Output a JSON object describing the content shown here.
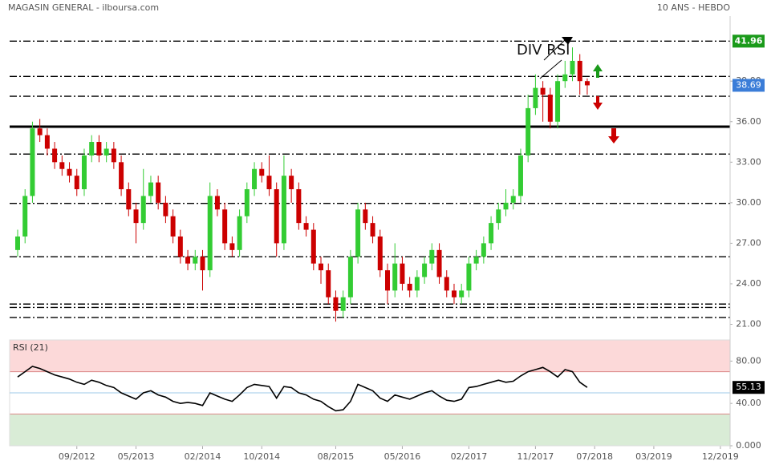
{
  "chart_data": [
    {
      "type": "candlestick",
      "title": "MAGASIN GENERAL - ilboursa.com",
      "subtitle": "10 ANS - HEBDO",
      "annotation": "DIV RSI",
      "categories": [
        null,
        null,
        null,
        null,
        null,
        null,
        null,
        null,
        "09/2012",
        null,
        null,
        null,
        null,
        null,
        null,
        null,
        "05/2013",
        null,
        null,
        null,
        null,
        null,
        null,
        null,
        null,
        "02/2014",
        null,
        null,
        null,
        null,
        null,
        null,
        null,
        "10/2014",
        null,
        null,
        null,
        null,
        null,
        null,
        null,
        null,
        null,
        "08/2015",
        null,
        null,
        null,
        null,
        null,
        null,
        null,
        null,
        "05/2016",
        null,
        null,
        null,
        null,
        null,
        null,
        null,
        null,
        "02/2017",
        null,
        null,
        null,
        null,
        null,
        null,
        null,
        null,
        "11/2017",
        null,
        null,
        null,
        null,
        null,
        null,
        null,
        "07/2018",
        null,
        null,
        null,
        null,
        null,
        null,
        null,
        "03/2019",
        null,
        null,
        null,
        null,
        null,
        null,
        null,
        null,
        "12/2019"
      ],
      "open": [
        26.5,
        27.5,
        30.5,
        35.5,
        35.0,
        34.0,
        33.0,
        32.5,
        32.0,
        31.0,
        33.5,
        34.5,
        33.5,
        34.0,
        33.0,
        31.0,
        29.5,
        28.5,
        30.5,
        31.5,
        30.0,
        29.0,
        27.5,
        26.0,
        25.5,
        26.0,
        25.0,
        30.5,
        29.5,
        27.0,
        26.5,
        29.0,
        31.0,
        32.5,
        32.0,
        31.0,
        27.0,
        32.0,
        31.0,
        28.5,
        28.0,
        25.5,
        25.0,
        23.0,
        22.0,
        23.0,
        26.0,
        29.5,
        28.5,
        27.5,
        25.0,
        23.5,
        25.5,
        24.0,
        23.5,
        24.5,
        25.5,
        26.5,
        24.5,
        23.5,
        23.0,
        23.5,
        25.5,
        26.0,
        27.0,
        28.5,
        29.5,
        30.0,
        30.5,
        33.5,
        37.0,
        38.5,
        38.0,
        36.0,
        39.0,
        39.5,
        40.5,
        39.0,
        null,
        null,
        null,
        null,
        null,
        null,
        null,
        null,
        null,
        null,
        null,
        null,
        null,
        null,
        null,
        null,
        null,
        null
      ],
      "high": [
        28.0,
        31.0,
        36.0,
        36.2,
        35.5,
        34.5,
        33.5,
        33.0,
        32.5,
        34.0,
        35.0,
        35.0,
        34.5,
        34.5,
        33.5,
        31.5,
        30.0,
        32.5,
        32.0,
        32.0,
        30.5,
        29.5,
        28.0,
        26.5,
        26.5,
        26.5,
        31.5,
        31.0,
        30.0,
        27.5,
        29.5,
        31.5,
        33.0,
        33.0,
        33.5,
        31.5,
        33.5,
        32.5,
        31.5,
        29.0,
        28.5,
        26.0,
        25.5,
        23.5,
        23.5,
        26.5,
        30.0,
        30.0,
        29.0,
        28.0,
        25.5,
        27.0,
        26.0,
        24.5,
        25.0,
        26.0,
        27.0,
        27.0,
        25.0,
        24.0,
        24.0,
        26.0,
        26.5,
        27.5,
        29.0,
        30.0,
        31.0,
        31.0,
        34.0,
        38.0,
        39.5,
        39.0,
        38.5,
        39.5,
        40.5,
        41.5,
        41.0,
        39.2,
        null,
        null,
        null,
        null,
        null,
        null,
        null,
        null,
        null,
        null,
        null,
        null,
        null,
        null,
        null,
        null,
        null,
        null
      ],
      "low": [
        26.0,
        27.0,
        30.0,
        34.5,
        33.5,
        32.5,
        32.0,
        31.5,
        30.5,
        30.5,
        33.0,
        33.0,
        33.0,
        32.5,
        30.5,
        29.0,
        27.0,
        28.0,
        30.0,
        29.5,
        28.5,
        27.0,
        25.5,
        25.0,
        25.0,
        23.5,
        24.5,
        29.0,
        26.5,
        26.0,
        26.0,
        28.5,
        30.5,
        31.5,
        30.5,
        26.0,
        26.5,
        30.0,
        28.0,
        27.5,
        25.0,
        24.0,
        22.5,
        21.2,
        21.5,
        22.5,
        25.5,
        28.0,
        27.0,
        24.5,
        22.5,
        23.0,
        23.5,
        23.0,
        23.0,
        24.0,
        25.0,
        24.0,
        23.0,
        22.5,
        22.5,
        23.0,
        25.0,
        25.5,
        26.5,
        28.0,
        29.0,
        29.5,
        30.0,
        33.0,
        36.5,
        36.0,
        35.5,
        35.5,
        38.5,
        39.0,
        38.0,
        38.0,
        null,
        null,
        null,
        null,
        null,
        null,
        null,
        null,
        null,
        null,
        null,
        null,
        null,
        null,
        null,
        null,
        null,
        null
      ],
      "close": [
        27.5,
        30.5,
        35.5,
        35.0,
        34.0,
        33.0,
        32.5,
        32.0,
        31.0,
        33.5,
        34.5,
        33.5,
        34.0,
        33.0,
        31.0,
        29.5,
        28.5,
        30.5,
        31.5,
        30.0,
        29.0,
        27.5,
        26.0,
        25.5,
        26.0,
        25.0,
        30.5,
        29.5,
        27.0,
        26.5,
        29.0,
        31.0,
        32.5,
        32.0,
        31.0,
        27.0,
        32.0,
        31.0,
        28.5,
        28.0,
        25.5,
        25.0,
        23.0,
        22.0,
        23.0,
        26.0,
        29.5,
        28.5,
        27.5,
        25.0,
        23.5,
        25.5,
        24.0,
        23.5,
        24.5,
        25.5,
        26.5,
        24.5,
        23.5,
        23.0,
        23.5,
        25.5,
        26.0,
        27.0,
        28.5,
        29.5,
        30.0,
        30.5,
        33.5,
        37.0,
        38.5,
        38.0,
        36.0,
        39.0,
        39.5,
        40.5,
        39.0,
        38.69,
        null,
        null,
        null,
        null,
        null,
        null,
        null,
        null,
        null,
        null,
        null,
        null,
        null,
        null,
        null,
        null,
        null,
        null
      ],
      "up_color": "#33cc33",
      "down_color": "#cc0000",
      "last_price_color": "#3b7dd8",
      "ylim": [
        20.2,
        43.7
      ],
      "yticks": [
        {
          "value": 21,
          "label": "21.00"
        },
        {
          "value": 24,
          "label": "24.00"
        },
        {
          "value": 27,
          "label": "27.00"
        },
        {
          "value": 30,
          "label": "30.00"
        },
        {
          "value": 33,
          "label": "33.00"
        },
        {
          "value": 36,
          "label": "36.00"
        },
        {
          "value": 39,
          "label": "39.00"
        }
      ],
      "levels": [
        {
          "value": 41.96,
          "style": "dashed",
          "label_color": "#1a9a1a"
        },
        {
          "value": 39.35,
          "style": "dashed"
        },
        {
          "value": 37.88,
          "style": "dashed"
        },
        {
          "value": 35.63,
          "style": "solid"
        },
        {
          "value": 33.6,
          "style": "dashed"
        },
        {
          "value": 29.95,
          "style": "dashed"
        },
        {
          "value": 26.0,
          "style": "dashed"
        },
        {
          "value": 22.5,
          "style": "dashed"
        },
        {
          "value": 22.25,
          "style": "dashed"
        },
        {
          "value": 21.5,
          "style": "dashed"
        }
      ]
    },
    {
      "type": "line",
      "name": "RSI (21)",
      "color": "#000000",
      "last_value_color": "#000000",
      "values": [
        65,
        70,
        75,
        73,
        70,
        67,
        65,
        63,
        60,
        58,
        62,
        60,
        57,
        55,
        50,
        47,
        44,
        50,
        52,
        48,
        46,
        42,
        40,
        41,
        40,
        38,
        50,
        47,
        44,
        42,
        48,
        55,
        58,
        57,
        56,
        45,
        56,
        55,
        50,
        48,
        44,
        42,
        37,
        33,
        34,
        42,
        58,
        55,
        52,
        45,
        42,
        48,
        46,
        44,
        47,
        50,
        52,
        47,
        43,
        42,
        44,
        55,
        56,
        58,
        60,
        62,
        60,
        61,
        66,
        70,
        72,
        74,
        70,
        65,
        72,
        70,
        60,
        55.13,
        null,
        null,
        null,
        null,
        null,
        null,
        null,
        null,
        null,
        null,
        null,
        null,
        null,
        null,
        null,
        null,
        null,
        null
      ],
      "ylim": [
        0,
        100
      ],
      "yticks": [
        {
          "value": 0,
          "label": "0.000"
        },
        {
          "value": 40,
          "label": "40.00"
        },
        {
          "value": 80,
          "label": "80.00"
        }
      ],
      "zones": [
        {
          "from": 70,
          "to": 100,
          "color": "#fcd9d9"
        },
        {
          "from": 0,
          "to": 30,
          "color": "#d9ecd6"
        }
      ],
      "midline": 50,
      "midline_color": "#9cc8e8"
    }
  ]
}
